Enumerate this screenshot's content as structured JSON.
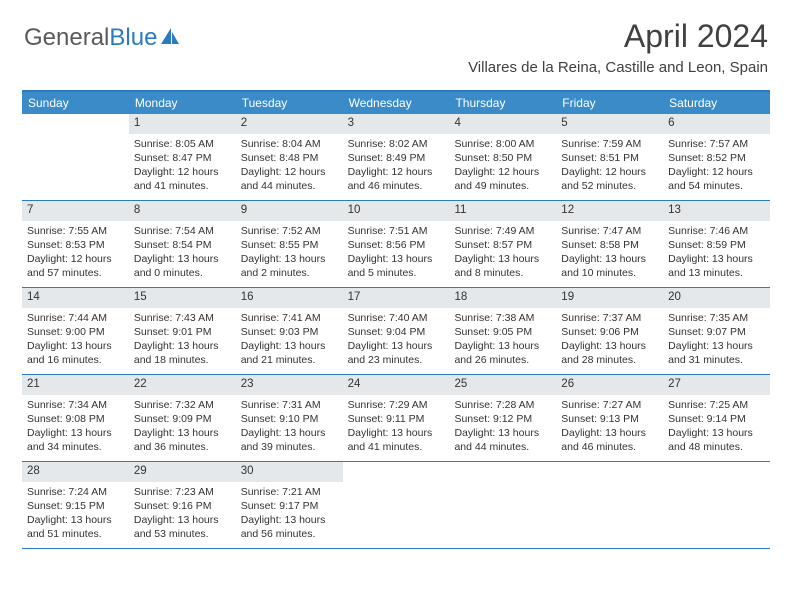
{
  "logo": {
    "text1": "General",
    "text2": "Blue"
  },
  "title": "April 2024",
  "location": "Villares de la Reina, Castille and Leon, Spain",
  "colors": {
    "header_bg": "#3b8bc9",
    "border": "#2d7bbf",
    "daynum_bg": "#e4e8eb",
    "text": "#333333"
  },
  "weekdays": [
    "Sunday",
    "Monday",
    "Tuesday",
    "Wednesday",
    "Thursday",
    "Friday",
    "Saturday"
  ],
  "weeks": [
    [
      null,
      {
        "n": "1",
        "sr": "8:05 AM",
        "ss": "8:47 PM",
        "dl": "12 hours and 41 minutes."
      },
      {
        "n": "2",
        "sr": "8:04 AM",
        "ss": "8:48 PM",
        "dl": "12 hours and 44 minutes."
      },
      {
        "n": "3",
        "sr": "8:02 AM",
        "ss": "8:49 PM",
        "dl": "12 hours and 46 minutes."
      },
      {
        "n": "4",
        "sr": "8:00 AM",
        "ss": "8:50 PM",
        "dl": "12 hours and 49 minutes."
      },
      {
        "n": "5",
        "sr": "7:59 AM",
        "ss": "8:51 PM",
        "dl": "12 hours and 52 minutes."
      },
      {
        "n": "6",
        "sr": "7:57 AM",
        "ss": "8:52 PM",
        "dl": "12 hours and 54 minutes."
      }
    ],
    [
      {
        "n": "7",
        "sr": "7:55 AM",
        "ss": "8:53 PM",
        "dl": "12 hours and 57 minutes."
      },
      {
        "n": "8",
        "sr": "7:54 AM",
        "ss": "8:54 PM",
        "dl": "13 hours and 0 minutes."
      },
      {
        "n": "9",
        "sr": "7:52 AM",
        "ss": "8:55 PM",
        "dl": "13 hours and 2 minutes."
      },
      {
        "n": "10",
        "sr": "7:51 AM",
        "ss": "8:56 PM",
        "dl": "13 hours and 5 minutes."
      },
      {
        "n": "11",
        "sr": "7:49 AM",
        "ss": "8:57 PM",
        "dl": "13 hours and 8 minutes."
      },
      {
        "n": "12",
        "sr": "7:47 AM",
        "ss": "8:58 PM",
        "dl": "13 hours and 10 minutes."
      },
      {
        "n": "13",
        "sr": "7:46 AM",
        "ss": "8:59 PM",
        "dl": "13 hours and 13 minutes."
      }
    ],
    [
      {
        "n": "14",
        "sr": "7:44 AM",
        "ss": "9:00 PM",
        "dl": "13 hours and 16 minutes."
      },
      {
        "n": "15",
        "sr": "7:43 AM",
        "ss": "9:01 PM",
        "dl": "13 hours and 18 minutes."
      },
      {
        "n": "16",
        "sr": "7:41 AM",
        "ss": "9:03 PM",
        "dl": "13 hours and 21 minutes."
      },
      {
        "n": "17",
        "sr": "7:40 AM",
        "ss": "9:04 PM",
        "dl": "13 hours and 23 minutes."
      },
      {
        "n": "18",
        "sr": "7:38 AM",
        "ss": "9:05 PM",
        "dl": "13 hours and 26 minutes."
      },
      {
        "n": "19",
        "sr": "7:37 AM",
        "ss": "9:06 PM",
        "dl": "13 hours and 28 minutes."
      },
      {
        "n": "20",
        "sr": "7:35 AM",
        "ss": "9:07 PM",
        "dl": "13 hours and 31 minutes."
      }
    ],
    [
      {
        "n": "21",
        "sr": "7:34 AM",
        "ss": "9:08 PM",
        "dl": "13 hours and 34 minutes."
      },
      {
        "n": "22",
        "sr": "7:32 AM",
        "ss": "9:09 PM",
        "dl": "13 hours and 36 minutes."
      },
      {
        "n": "23",
        "sr": "7:31 AM",
        "ss": "9:10 PM",
        "dl": "13 hours and 39 minutes."
      },
      {
        "n": "24",
        "sr": "7:29 AM",
        "ss": "9:11 PM",
        "dl": "13 hours and 41 minutes."
      },
      {
        "n": "25",
        "sr": "7:28 AM",
        "ss": "9:12 PM",
        "dl": "13 hours and 44 minutes."
      },
      {
        "n": "26",
        "sr": "7:27 AM",
        "ss": "9:13 PM",
        "dl": "13 hours and 46 minutes."
      },
      {
        "n": "27",
        "sr": "7:25 AM",
        "ss": "9:14 PM",
        "dl": "13 hours and 48 minutes."
      }
    ],
    [
      {
        "n": "28",
        "sr": "7:24 AM",
        "ss": "9:15 PM",
        "dl": "13 hours and 51 minutes."
      },
      {
        "n": "29",
        "sr": "7:23 AM",
        "ss": "9:16 PM",
        "dl": "13 hours and 53 minutes."
      },
      {
        "n": "30",
        "sr": "7:21 AM",
        "ss": "9:17 PM",
        "dl": "13 hours and 56 minutes."
      },
      null,
      null,
      null,
      null
    ]
  ],
  "labels": {
    "sunrise": "Sunrise: ",
    "sunset": "Sunset: ",
    "daylight": "Daylight: "
  }
}
